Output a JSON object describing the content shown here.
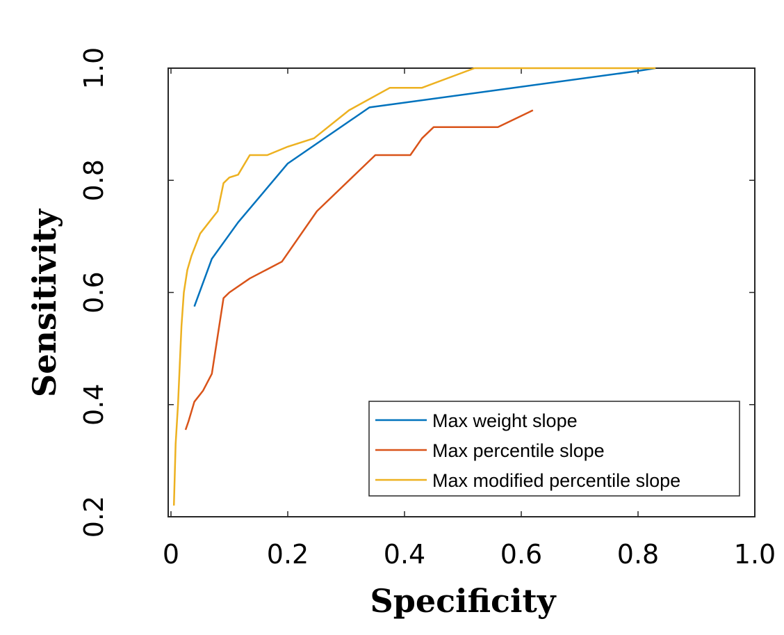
{
  "chart_data": {
    "type": "line",
    "xlabel": "Specificity",
    "ylabel": "Sensitivity",
    "xlim": [
      0,
      1.0
    ],
    "ylim": [
      0.2,
      1.0
    ],
    "xticks": [
      {
        "value": 0,
        "label": "0"
      },
      {
        "value": 0.2,
        "label": "0.2"
      },
      {
        "value": 0.4,
        "label": "0.4"
      },
      {
        "value": 0.6,
        "label": "0.6"
      },
      {
        "value": 0.8,
        "label": "0.8"
      },
      {
        "value": 1.0,
        "label": "1.0"
      }
    ],
    "yticks": [
      {
        "value": 0.2,
        "label": "0.2"
      },
      {
        "value": 0.4,
        "label": "0.4"
      },
      {
        "value": 0.6,
        "label": "0.6"
      },
      {
        "value": 0.8,
        "label": "0.8"
      },
      {
        "value": 1.0,
        "label": "1.0"
      }
    ],
    "grid": false,
    "legend_position": "bottom-right",
    "series": [
      {
        "name": "Max weight slope",
        "color": "#0072BD",
        "x": [
          0.04,
          0.07,
          0.115,
          0.2,
          0.34,
          0.8,
          0.83
        ],
        "y": [
          0.575,
          0.66,
          0.725,
          0.83,
          0.93,
          0.995,
          1.0
        ]
      },
      {
        "name": "Max percentile slope",
        "color": "#D95319",
        "x": [
          0.025,
          0.03,
          0.04,
          0.055,
          0.07,
          0.09,
          0.1,
          0.135,
          0.19,
          0.25,
          0.35,
          0.41,
          0.43,
          0.45,
          0.56,
          0.62
        ],
        "y": [
          0.355,
          0.37,
          0.405,
          0.425,
          0.455,
          0.59,
          0.6,
          0.625,
          0.655,
          0.745,
          0.845,
          0.845,
          0.875,
          0.895,
          0.895,
          0.925
        ]
      },
      {
        "name": "Max modified percentile slope",
        "color": "#EDB120",
        "x": [
          0.005,
          0.008,
          0.012,
          0.015,
          0.018,
          0.022,
          0.028,
          0.035,
          0.05,
          0.065,
          0.08,
          0.09,
          0.1,
          0.115,
          0.135,
          0.165,
          0.2,
          0.245,
          0.305,
          0.375,
          0.43,
          0.52,
          0.83
        ],
        "y": [
          0.22,
          0.33,
          0.4,
          0.47,
          0.54,
          0.6,
          0.64,
          0.665,
          0.705,
          0.725,
          0.745,
          0.795,
          0.805,
          0.81,
          0.845,
          0.845,
          0.86,
          0.875,
          0.925,
          0.965,
          0.965,
          1.0,
          1.0
        ]
      }
    ]
  }
}
